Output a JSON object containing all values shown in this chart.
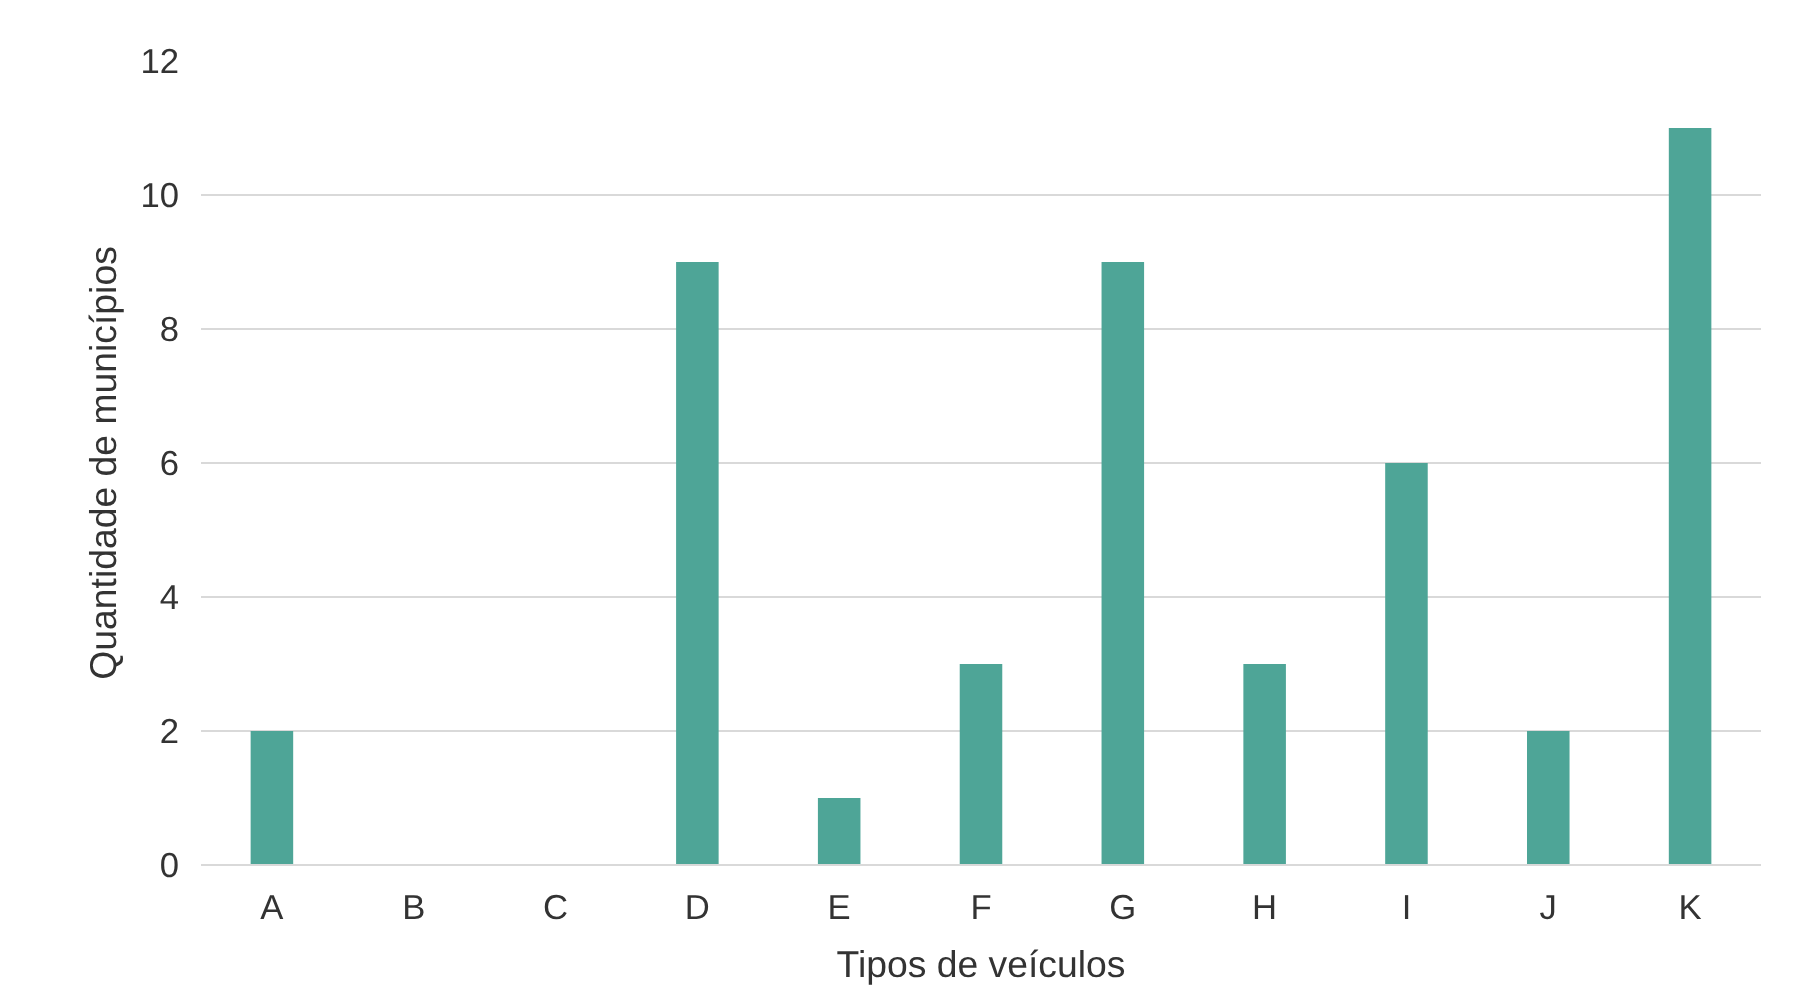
{
  "chart_data": {
    "type": "bar",
    "xlabel": "Tipos de veículos",
    "ylabel": "Quantidade de municípios",
    "categories": [
      "A",
      "B",
      "C",
      "D",
      "E",
      "F",
      "G",
      "H",
      "I",
      "J",
      "K"
    ],
    "values": [
      2,
      0,
      0,
      9,
      1,
      3,
      9,
      3,
      6,
      2,
      11
    ],
    "color": "#4ea597",
    "ylim": [
      0,
      12
    ],
    "yticks": [
      0,
      2,
      4,
      6,
      8,
      10,
      12
    ],
    "grid": "y"
  }
}
